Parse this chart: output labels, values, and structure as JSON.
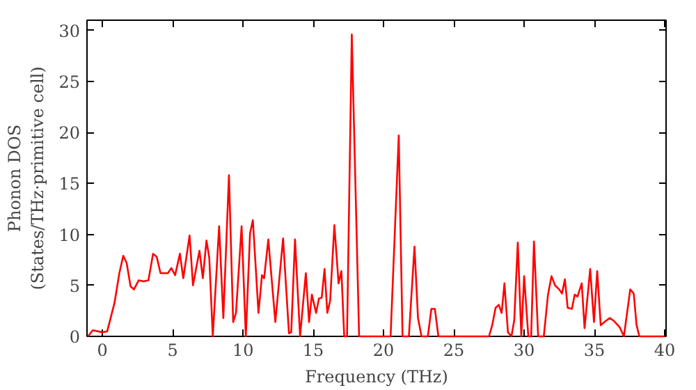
{
  "chart_data": {
    "type": "line",
    "xlabel": "Frequency (THz)",
    "ylabel": "Phonon DOS\n(States/THz·primitive cell)",
    "xlim": [
      -1.1,
      40.1
    ],
    "ylim": [
      0,
      31
    ],
    "xticks": [
      0,
      5,
      10,
      15,
      20,
      25,
      30,
      35,
      40
    ],
    "yticks": [
      0,
      5,
      10,
      15,
      20,
      25,
      30
    ],
    "grid": false,
    "series": [
      {
        "color": "#ff0000",
        "x": [
          -1.03,
          -0.69,
          0,
          0.34,
          0.86,
          1.2,
          1.48,
          1.72,
          2.0,
          2.24,
          2.58,
          2.93,
          3.27,
          3.6,
          3.86,
          4.13,
          4.65,
          4.9,
          5.17,
          5.51,
          5.75,
          6.2,
          6.44,
          6.9,
          7.14,
          7.4,
          7.6,
          7.85,
          8.3,
          8.6,
          9.0,
          9.3,
          9.5,
          9.9,
          10.2,
          10.5,
          10.7,
          11.1,
          11.35,
          11.5,
          11.8,
          12.3,
          12.85,
          13.27,
          13.43,
          13.7,
          14.06,
          14.47,
          14.7,
          14.9,
          15.2,
          15.4,
          15.6,
          15.8,
          16.0,
          16.2,
          16.5,
          16.8,
          17.0,
          17.2,
          17.4,
          17.74,
          18.26,
          20.5,
          21.08,
          21.35,
          21.8,
          22.2,
          22.45,
          22.7,
          23.15,
          23.4,
          23.65,
          23.9,
          25.8,
          27.5,
          27.73,
          27.97,
          28.2,
          28.4,
          28.6,
          28.85,
          29.1,
          29.3,
          29.55,
          29.8,
          30.0,
          30.3,
          30.5,
          30.7,
          31.0,
          31.4,
          31.7,
          31.95,
          32.2,
          32.5,
          32.7,
          32.9,
          33.1,
          33.4,
          33.6,
          33.8,
          34.1,
          34.3,
          34.7,
          34.97,
          35.2,
          35.45,
          35.8,
          36.1,
          36.4,
          36.8,
          37.1,
          37.55,
          37.8,
          38.0,
          38.2,
          40.0
        ],
        "values": [
          0,
          0.6,
          0.4,
          0.5,
          3.3,
          6.2,
          7.9,
          7.2,
          4.9,
          4.6,
          5.5,
          5.4,
          5.5,
          8.1,
          7.8,
          6.2,
          6.2,
          6.7,
          6.0,
          8.1,
          5.7,
          9.9,
          5.0,
          8.4,
          5.7,
          9.4,
          7.7,
          0,
          10.8,
          1.8,
          15.8,
          1.4,
          2.3,
          10.8,
          0,
          10.1,
          11.4,
          2.3,
          6.0,
          5.7,
          9.5,
          1.4,
          9.6,
          0.3,
          0.4,
          9.5,
          0,
          6.2,
          1.4,
          4.1,
          2.3,
          3.7,
          3.8,
          6.6,
          2.3,
          3.5,
          10.9,
          5.2,
          6.4,
          0,
          0,
          29.6,
          0,
          0,
          19.7,
          0,
          0,
          8.8,
          1.8,
          0,
          0,
          2.7,
          2.7,
          0,
          0,
          0,
          1.1,
          2.8,
          3.1,
          2.3,
          5.2,
          0.4,
          0,
          1.6,
          9.2,
          0,
          5.9,
          0,
          0,
          9.3,
          0,
          0,
          4.1,
          5.9,
          5.0,
          4.6,
          4.2,
          5.6,
          2.8,
          2.7,
          4.1,
          3.9,
          5.2,
          0.8,
          6.6,
          1.4,
          6.4,
          1.1,
          1.5,
          1.8,
          1.5,
          0.9,
          0,
          4.6,
          4.2,
          1.1,
          0,
          0
        ]
      }
    ]
  }
}
